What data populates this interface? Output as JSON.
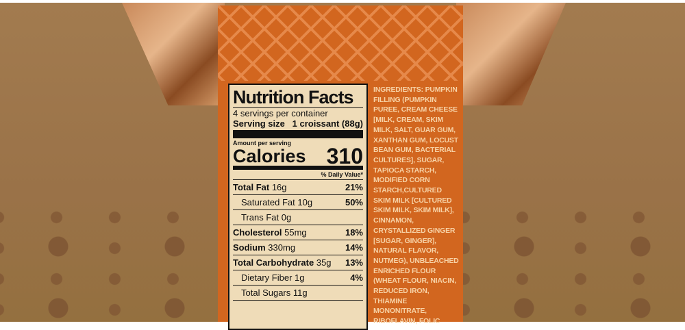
{
  "nutrition": {
    "title": "Nutrition Facts",
    "servings": "4 servings per container",
    "serving_size_label": "Serving size",
    "serving_size_value": "1 croissant (88g)",
    "amount_per_serving": "Amount per serving",
    "calories_label": "Calories",
    "calories_value": "310",
    "daily_value_header": "% Daily Value*",
    "rows": [
      {
        "name": "Total Fat",
        "amount": "16g",
        "dv": "21%",
        "bold": true
      },
      {
        "name": "Saturated Fat",
        "amount": "10g",
        "dv": "50%",
        "bold": false
      },
      {
        "name": "Trans Fat",
        "amount": "0g",
        "dv": "",
        "bold": false
      },
      {
        "name": "Cholesterol",
        "amount": "55mg",
        "dv": "18%",
        "bold": true
      },
      {
        "name": "Sodium",
        "amount": "330mg",
        "dv": "14%",
        "bold": true
      },
      {
        "name": "Total Carbohydrate",
        "amount": "35g",
        "dv": "13%",
        "bold": true
      },
      {
        "name": "Dietary Fiber",
        "amount": "1g",
        "dv": "4%",
        "bold": false
      },
      {
        "name": "Total Sugars",
        "amount": "11g",
        "dv": "",
        "bold": false
      }
    ]
  },
  "ingredients_lines": [
    "INGREDIENTS: PUMPKIN",
    "FILLING (PUMPKIN",
    "PUREE, CREAM CHEESE",
    "[MILK, CREAM, SKIM",
    "MILK, SALT, GUAR GUM,",
    "XANTHAN GUM, LOCUST",
    "BEAN GUM, BACTERIAL",
    "CULTURES], SUGAR,",
    "TAPIOCA STARCH,",
    "MODIFIED CORN",
    "STARCH,CULTURED",
    "SKIM MILK [CULTURED",
    "SKIM MILK, SKIM MILK],",
    "CINNAMON,",
    "CRYSTALLIZED GINGER",
    "[SUGAR, GINGER],",
    "NATURAL FLAVOR,",
    "NUTMEG), UNBLEACHED",
    "ENRICHED FLOUR",
    "(WHEAT FLOUR, NIACIN,",
    "REDUCED IRON,",
    "THIAMINE",
    "MONONITRATE,",
    "RIBOFLAVIN, FOLIC"
  ],
  "colors": {
    "box": "#a07a4e",
    "band": "#d2661f",
    "label": "#efdcb8",
    "ingredients_text": "#f7d2a6"
  }
}
